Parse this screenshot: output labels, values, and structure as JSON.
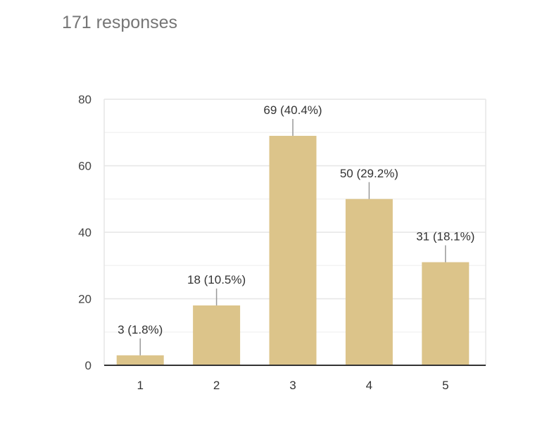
{
  "header": {
    "responses": "171 responses"
  },
  "chart_data": {
    "type": "bar",
    "categories": [
      "1",
      "2",
      "3",
      "4",
      "5"
    ],
    "values": [
      3,
      18,
      69,
      50,
      31
    ],
    "data_labels": [
      "3 (1.8%)",
      "18 (10.5%)",
      "69 (40.4%)",
      "50 (29.2%)",
      "31 (18.1%)"
    ],
    "ylim": [
      0,
      80
    ],
    "yticks": [
      0,
      20,
      40,
      60,
      80
    ],
    "grid": true,
    "bar_color": "#dcc48a"
  }
}
